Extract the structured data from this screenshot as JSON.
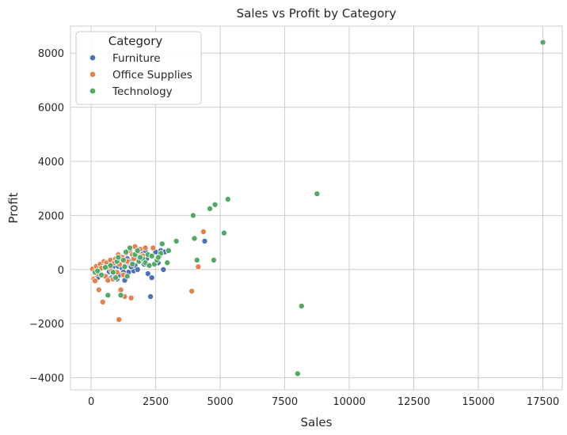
{
  "chart_data": {
    "type": "scatter",
    "title": "Sales vs Profit by Category",
    "xlabel": "Sales",
    "ylabel": "Profit",
    "xlim": [
      -800,
      18250
    ],
    "ylim": [
      -4450,
      9000
    ],
    "xticks": [
      0,
      2500,
      5000,
      7500,
      10000,
      12500,
      15000,
      17500
    ],
    "yticks": [
      -4000,
      -2000,
      0,
      2000,
      4000,
      6000,
      8000
    ],
    "xtick_labels": [
      "0",
      "2500",
      "5000",
      "7500",
      "10000",
      "12500",
      "15000",
      "17500"
    ],
    "ytick_labels": [
      "−4000",
      "−2000",
      "0",
      "2000",
      "4000",
      "6000",
      "8000"
    ],
    "grid": true,
    "legend": {
      "title": "Category",
      "position": "top-left"
    },
    "series": [
      {
        "name": "Furniture",
        "color": "#4c72b0",
        "points": [
          [
            100,
            -50
          ],
          [
            200,
            80
          ],
          [
            300,
            -120
          ],
          [
            350,
            40
          ],
          [
            450,
            -200
          ],
          [
            500,
            150
          ],
          [
            550,
            -250
          ],
          [
            650,
            60
          ],
          [
            700,
            -80
          ],
          [
            750,
            200
          ],
          [
            800,
            -300
          ],
          [
            850,
            100
          ],
          [
            900,
            -150
          ],
          [
            950,
            250
          ],
          [
            1000,
            -350
          ],
          [
            1050,
            120
          ],
          [
            1100,
            -200
          ],
          [
            1150,
            300
          ],
          [
            1200,
            50
          ],
          [
            1300,
            -400
          ],
          [
            1350,
            180
          ],
          [
            1400,
            400
          ],
          [
            1450,
            -100
          ],
          [
            1500,
            250
          ],
          [
            1600,
            350
          ],
          [
            1650,
            -50
          ],
          [
            1700,
            150
          ],
          [
            1750,
            500
          ],
          [
            1800,
            0
          ],
          [
            1850,
            450
          ],
          [
            1900,
            300
          ],
          [
            2000,
            600
          ],
          [
            2050,
            200
          ],
          [
            2100,
            700
          ],
          [
            2200,
            -150
          ],
          [
            2300,
            -1000
          ],
          [
            2350,
            -300
          ],
          [
            2500,
            650
          ],
          [
            2600,
            250
          ],
          [
            2650,
            500
          ],
          [
            2700,
            700
          ],
          [
            2800,
            0
          ],
          [
            2850,
            650
          ],
          [
            4400,
            1050
          ],
          [
            600,
            -300
          ],
          [
            400,
            -180
          ],
          [
            250,
            -300
          ],
          [
            1250,
            -100
          ],
          [
            1550,
            100
          ],
          [
            2150,
            400
          ]
        ]
      },
      {
        "name": "Office Supplies",
        "color": "#dd8452",
        "points": [
          [
            50,
            20
          ],
          [
            100,
            -350
          ],
          [
            150,
            -420
          ],
          [
            200,
            120
          ],
          [
            250,
            -150
          ],
          [
            300,
            -750
          ],
          [
            350,
            200
          ],
          [
            400,
            50
          ],
          [
            450,
            -1200
          ],
          [
            500,
            300
          ],
          [
            550,
            -250
          ],
          [
            600,
            250
          ],
          [
            650,
            -400
          ],
          [
            700,
            100
          ],
          [
            750,
            350
          ],
          [
            800,
            -50
          ],
          [
            900,
            250
          ],
          [
            950,
            400
          ],
          [
            1000,
            -100
          ],
          [
            1050,
            550
          ],
          [
            1080,
            -1850
          ],
          [
            1100,
            200
          ],
          [
            1150,
            -750
          ],
          [
            1200,
            450
          ],
          [
            1300,
            -1000
          ],
          [
            1350,
            600
          ],
          [
            1400,
            300
          ],
          [
            1500,
            700
          ],
          [
            1550,
            -1050
          ],
          [
            1600,
            550
          ],
          [
            1700,
            850
          ],
          [
            1800,
            650
          ],
          [
            1900,
            750
          ],
          [
            2000,
            500
          ],
          [
            2100,
            800
          ],
          [
            2400,
            800
          ],
          [
            3900,
            -800
          ],
          [
            4150,
            100
          ],
          [
            4350,
            1400
          ],
          [
            1250,
            -200
          ],
          [
            850,
            -350
          ],
          [
            1650,
            400
          ]
        ]
      },
      {
        "name": "Technology",
        "color": "#55a868",
        "points": [
          [
            150,
            -100
          ],
          [
            250,
            -50
          ],
          [
            400,
            -200
          ],
          [
            550,
            80
          ],
          [
            650,
            -950
          ],
          [
            750,
            150
          ],
          [
            850,
            -100
          ],
          [
            950,
            -300
          ],
          [
            1000,
            300
          ],
          [
            1050,
            450
          ],
          [
            1150,
            -950
          ],
          [
            1250,
            350
          ],
          [
            1300,
            100
          ],
          [
            1350,
            650
          ],
          [
            1400,
            -250
          ],
          [
            1500,
            800
          ],
          [
            1600,
            200
          ],
          [
            1700,
            550
          ],
          [
            1800,
            700
          ],
          [
            1850,
            300
          ],
          [
            2000,
            400
          ],
          [
            2100,
            250
          ],
          [
            2200,
            550
          ],
          [
            2350,
            500
          ],
          [
            2450,
            200
          ],
          [
            2550,
            350
          ],
          [
            2700,
            600
          ],
          [
            2750,
            950
          ],
          [
            2950,
            250
          ],
          [
            3000,
            700
          ],
          [
            3300,
            1050
          ],
          [
            3950,
            2000
          ],
          [
            4000,
            1150
          ],
          [
            4100,
            350
          ],
          [
            4600,
            2250
          ],
          [
            4750,
            350
          ],
          [
            4800,
            2400
          ],
          [
            5150,
            1350
          ],
          [
            5300,
            2600
          ],
          [
            8000,
            -3850
          ],
          [
            8150,
            -1350
          ],
          [
            8750,
            2800
          ],
          [
            17500,
            8400
          ],
          [
            1900,
            450
          ],
          [
            2250,
            150
          ],
          [
            2600,
            450
          ]
        ]
      }
    ]
  }
}
